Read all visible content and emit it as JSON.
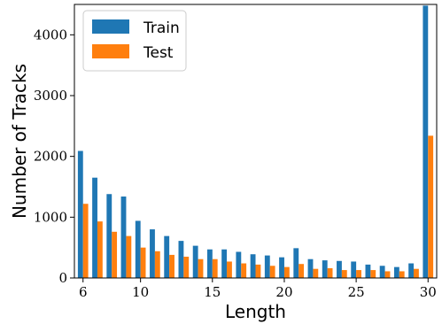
{
  "chart_data": {
    "type": "bar",
    "xlabel": "Length",
    "ylabel": "Number of Tracks",
    "x": [
      6,
      7,
      8,
      9,
      10,
      11,
      12,
      13,
      14,
      15,
      16,
      17,
      18,
      19,
      20,
      21,
      22,
      23,
      24,
      25,
      26,
      27,
      28,
      29,
      30
    ],
    "xticks": [
      6,
      10,
      15,
      20,
      25,
      30
    ],
    "yticks": [
      0,
      1000,
      2000,
      3000,
      4000
    ],
    "ylim": [
      0,
      4500
    ],
    "grid": false,
    "legend_position": "top-left",
    "series": [
      {
        "name": "Train",
        "color": "#1f77b4",
        "values": [
          2090,
          1650,
          1380,
          1340,
          940,
          800,
          690,
          610,
          530,
          470,
          470,
          430,
          390,
          370,
          340,
          490,
          310,
          290,
          280,
          270,
          220,
          200,
          180,
          240,
          4480
        ]
      },
      {
        "name": "Test",
        "color": "#ff7f0e",
        "values": [
          1220,
          930,
          760,
          690,
          500,
          440,
          380,
          350,
          310,
          310,
          270,
          240,
          220,
          200,
          180,
          230,
          150,
          160,
          130,
          130,
          130,
          110,
          110,
          150,
          2340
        ]
      }
    ]
  }
}
